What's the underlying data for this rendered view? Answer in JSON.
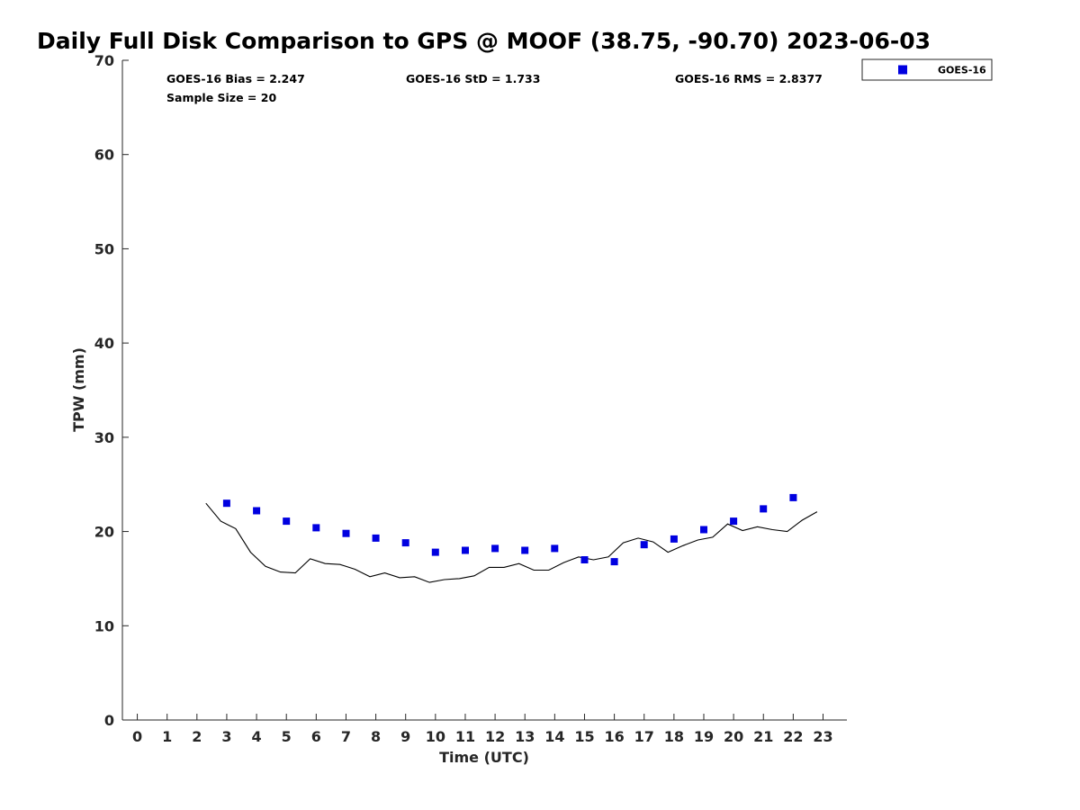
{
  "chart_data": {
    "type": "scatter",
    "title": "Daily Full Disk Comparison to GPS @ MOOF (38.75, -90.70) 2023-06-03",
    "xlabel": "Time (UTC)",
    "ylabel": "TPW (mm)",
    "xlim": [
      -0.5,
      23.8
    ],
    "ylim": [
      0,
      70
    ],
    "x_ticks": [
      "0",
      "1",
      "2",
      "3",
      "4",
      "5",
      "6",
      "7",
      "8",
      "9",
      "10",
      "11",
      "12",
      "13",
      "14",
      "15",
      "16",
      "17",
      "18",
      "19",
      "20",
      "21",
      "22",
      "23"
    ],
    "y_ticks": [
      "0",
      "10",
      "20",
      "30",
      "40",
      "50",
      "60",
      "70"
    ],
    "stats": {
      "bias": "GOES-16 Bias = 2.247",
      "std": "GOES-16 StD = 1.733",
      "rms": "GOES-16 RMS = 2.8377",
      "sample": "Sample Size = 20"
    },
    "legend_position": "top-right, outside plot",
    "series": [
      {
        "name": "GOES-16",
        "kind": "scatter",
        "marker": "square",
        "color": "#0000e0",
        "x": [
          3,
          4,
          5,
          6,
          7,
          8,
          9,
          10,
          11,
          12,
          13,
          14,
          15,
          16,
          17,
          18,
          19,
          20,
          21,
          22
        ],
        "y": [
          23.0,
          22.2,
          21.1,
          20.4,
          19.8,
          19.3,
          18.8,
          17.8,
          18.0,
          18.2,
          18.0,
          18.2,
          17.0,
          16.8,
          18.6,
          19.2,
          20.2,
          21.1,
          22.4,
          23.6
        ]
      },
      {
        "kind": "line",
        "color": "#000000",
        "x": [
          2.3,
          2.8,
          3.3,
          3.8,
          4.3,
          4.8,
          5.3,
          5.8,
          6.3,
          6.8,
          7.3,
          7.8,
          8.3,
          8.8,
          9.3,
          9.8,
          10.3,
          10.8,
          11.3,
          11.8,
          12.3,
          12.8,
          13.3,
          13.8,
          14.3,
          14.8,
          15.3,
          15.8,
          16.3,
          16.8,
          17.3,
          17.8,
          18.3,
          18.8,
          19.3,
          19.8,
          20.3,
          20.8,
          21.3,
          21.8,
          22.3,
          22.8
        ],
        "y": [
          23.0,
          21.1,
          20.3,
          17.8,
          16.3,
          15.7,
          15.6,
          17.1,
          16.6,
          16.5,
          16.0,
          15.2,
          15.6,
          15.1,
          15.2,
          14.6,
          14.9,
          15.0,
          15.3,
          16.2,
          16.2,
          16.6,
          15.9,
          15.9,
          16.7,
          17.3,
          17.0,
          17.3,
          18.8,
          19.3,
          18.9,
          17.8,
          18.5,
          19.1,
          19.4,
          20.8,
          20.1,
          20.5,
          20.2,
          20.0,
          21.2,
          22.1
        ]
      }
    ]
  }
}
